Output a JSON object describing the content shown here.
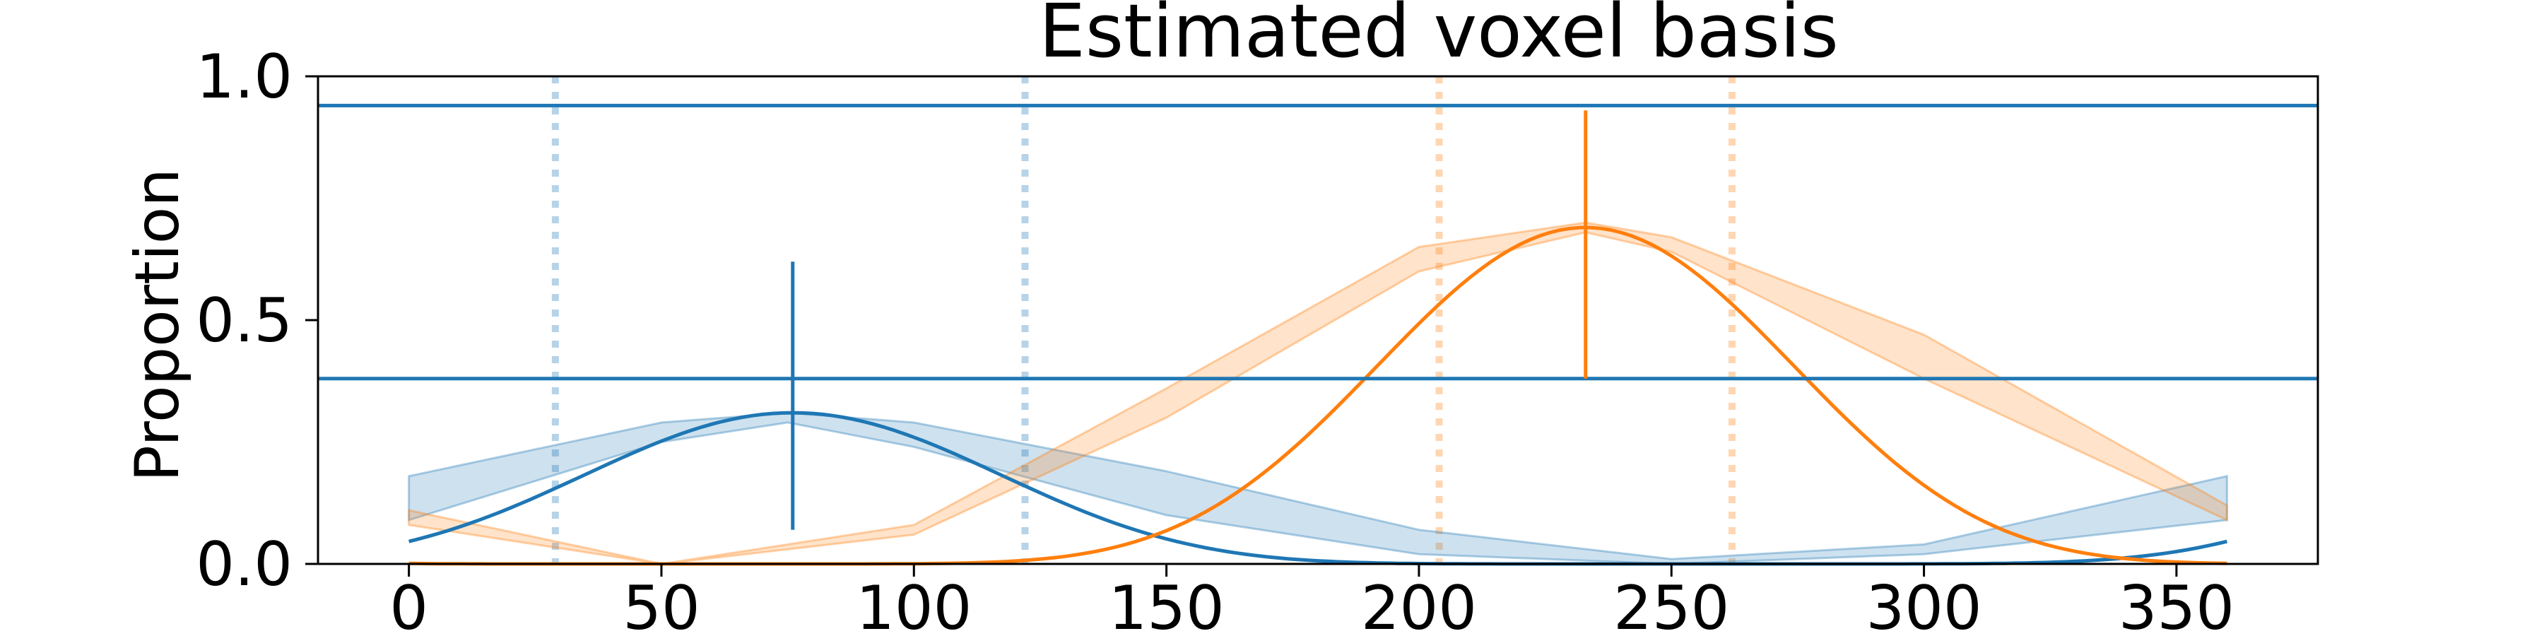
{
  "chart_data": {
    "type": "line",
    "title": "Estimated voxel basis",
    "xlabel": "",
    "ylabel": "Proportion",
    "xlim": [
      -18,
      378
    ],
    "ylim": [
      0,
      1
    ],
    "xticks": [
      0,
      50,
      100,
      150,
      200,
      250,
      300,
      350
    ],
    "yticks": [
      "0.0",
      "0.5",
      "1.0"
    ],
    "grid": false,
    "legend": "none",
    "colors": {
      "blue": "#1f77b4",
      "orange": "#ff7f0e"
    },
    "series": [
      {
        "color": "#1f77b4",
        "center": 76,
        "peak": 0.31,
        "dotted_lines_x": [
          29,
          122
        ],
        "center_tick_y": [
          0.07,
          0.62
        ],
        "horizontal_lines_y": [
          0.94,
          0.38
        ],
        "band": [
          {
            "x": 0,
            "lower": 0.09,
            "upper": 0.18
          },
          {
            "x": 50,
            "lower": 0.25,
            "upper": 0.29
          },
          {
            "x": 75,
            "lower": 0.29,
            "upper": 0.31
          },
          {
            "x": 100,
            "lower": 0.24,
            "upper": 0.29
          },
          {
            "x": 150,
            "lower": 0.1,
            "upper": 0.19
          },
          {
            "x": 200,
            "lower": 0.02,
            "upper": 0.07
          },
          {
            "x": 250,
            "lower": 0.0,
            "upper": 0.01
          },
          {
            "x": 300,
            "lower": 0.02,
            "upper": 0.04
          },
          {
            "x": 360,
            "lower": 0.09,
            "upper": 0.18
          }
        ]
      },
      {
        "color": "#ff7f0e",
        "center": 233,
        "peak": 0.69,
        "dotted_lines_x": [
          204,
          262
        ],
        "center_tick_y": [
          0.38,
          0.93
        ],
        "horizontal_lines_y": [],
        "band": [
          {
            "x": 0,
            "lower": 0.08,
            "upper": 0.11
          },
          {
            "x": 50,
            "lower": 0.0,
            "upper": 0.0
          },
          {
            "x": 100,
            "lower": 0.06,
            "upper": 0.08
          },
          {
            "x": 150,
            "lower": 0.3,
            "upper": 0.36
          },
          {
            "x": 200,
            "lower": 0.6,
            "upper": 0.65
          },
          {
            "x": 233,
            "lower": 0.68,
            "upper": 0.7
          },
          {
            "x": 250,
            "lower": 0.64,
            "upper": 0.67
          },
          {
            "x": 300,
            "lower": 0.38,
            "upper": 0.47
          },
          {
            "x": 360,
            "lower": 0.09,
            "upper": 0.12
          }
        ]
      }
    ]
  }
}
